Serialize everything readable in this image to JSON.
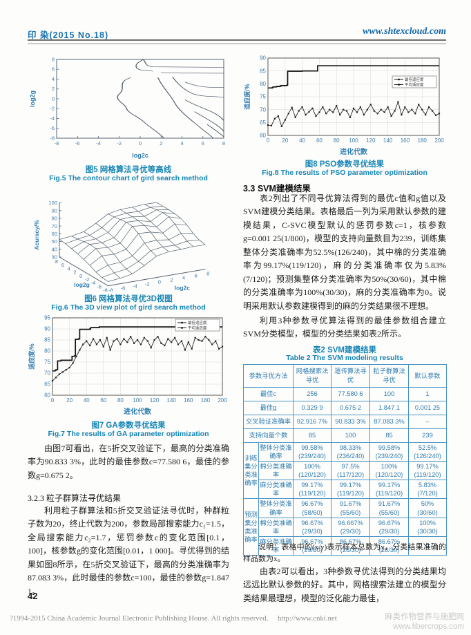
{
  "header": {
    "journal": "印 染(2015 No.18)",
    "site": "www.shtexcloud.com"
  },
  "figures": {
    "fig5": {
      "caption_cn": "图5 网格算法寻优等高线",
      "caption_en": "Fig.5 The contour chart of gird search method",
      "xlabel": "log2c",
      "ylabel": "log2g",
      "xlim": [
        -8,
        8
      ],
      "ylim": [
        -8,
        8
      ],
      "ticks": [
        -8,
        -6,
        -4,
        -2,
        0,
        2,
        4,
        6,
        8
      ],
      "chart_data": {
        "type": "contour",
        "contour_paths": [
          "M 0.3 8 C 0.6 7.2 0.4 6.8 1.2 6.5 L 8 6.4",
          "M 0.3 8 C -0.2 7.4 -0.6 6.9 -0.3 6.2 C 0 5.6 0.8 5.9 1.2 5.6",
          "M 2.0 5.35 C 3 5.15 5 5.25 8 5.2",
          "M -0.9 4.3 C -2.3 3.4 -1.3 2.2 -2 1 C -2.6 -0.2 -1.5 -0.8 -1.3 -2 C -1.1 -3 -0.2 -3.6 0.3 -4.6 C 0.8 -5.6 1.6 -6.6 2.3 -8",
          "M 1.7 4.3 C 2.1 2.4 2.9 0.8 3.3 -0.8 C 3.7 -2.4 4.7 -4 5.5 -5.4 C 6.1 -6.5 6.6 -7.2 7 -8",
          "M 3.1 4.4 C 3.7 2.8 4.3 1.6 5.2 0.9 C 6.3 0.3 7.1 0.6 8 0.3",
          "M 4.3 3.4 C 5.3 2.5 6.5 2.2 8 2.3",
          "M 4.3 -0.2 C 5.1 -1.2 6.1 -1.9 6.9 -2.7 C 7.5 -3.3 7.8 -3.9 8 -4.4",
          "M 5.2 -2.6 C 5.9 -3.5 6.7 -4.4 7.3 -5.3 C 7.7 -5.9 7.9 -6.3 8 -6.6",
          "M 6.4 -5.2 C 6.9 -5.9 7.5 -6.8 8 -7.7"
        ]
      }
    },
    "fig6": {
      "caption_cn": "图6 网格算法寻优3D视图",
      "caption_en": "Fig.6 The 3D view plot of gird search method",
      "zlabel": "Acuracy/%",
      "xlabel": "log2c",
      "ylabel": "log2g",
      "zticks": [
        30,
        40,
        50,
        60,
        70,
        80,
        90,
        100
      ],
      "gticks": [
        8,
        6,
        4,
        2,
        0,
        -2,
        -4,
        -6,
        -8
      ],
      "cticks": [
        -8,
        -6,
        -4,
        -2,
        0,
        2,
        4,
        6,
        8
      ],
      "chart_data": {
        "type": "surface"
      }
    },
    "fig7": {
      "caption_cn": "图7 GA参数寻优结果",
      "caption_en": "Fig.7 The results of GA parameter optimization",
      "xlabel": "进化代数",
      "ylabel": "适应度/%",
      "xlim": [
        0,
        200
      ],
      "ylim": [
        60,
        95
      ],
      "xticks": [
        0,
        20,
        40,
        60,
        80,
        100,
        120,
        140,
        160,
        180,
        200
      ],
      "yticks": [
        60,
        65,
        70,
        75,
        80,
        85,
        90,
        95
      ],
      "legend": [
        "最佳适应度",
        "平均适应度"
      ],
      "legend_dy": 2,
      "chart_data": {
        "type": "line",
        "series": [
          {
            "name": "最佳适应度",
            "style": "step",
            "points": [
              [
                0,
                71
              ],
              [
                3,
                71.2
              ],
              [
                4,
                71.5
              ],
              [
                6,
                75.5
              ],
              [
                10,
                75.8
              ],
              [
                22,
                75.8
              ],
              [
                23,
                77.6
              ],
              [
                26,
                77.8
              ],
              [
                27,
                85.3
              ],
              [
                31,
                85.5
              ],
              [
                32,
                89.8
              ],
              [
                44,
                90
              ],
              [
                45,
                90.6
              ],
              [
                54,
                90.6
              ],
              [
                55,
                90.9
              ],
              [
                200,
                90.9
              ]
            ]
          },
          {
            "name": "平均适应度",
            "style": "marker",
            "points": [
              [
                0,
                66.5
              ],
              [
                4,
                68
              ],
              [
                8,
                69.5
              ],
              [
                12,
                70.5
              ],
              [
                16,
                71.5
              ],
              [
                20,
                72.5
              ],
              [
                24,
                74.5
              ],
              [
                28,
                77.5
              ],
              [
                32,
                80.5
              ],
              [
                36,
                83
              ],
              [
                40,
                84.5
              ],
              [
                44,
                82.5
              ],
              [
                48,
                85.5
              ],
              [
                52,
                83
              ],
              [
                56,
                85
              ],
              [
                60,
                82
              ],
              [
                64,
                86
              ],
              [
                68,
                80.5
              ],
              [
                72,
                84.5
              ],
              [
                76,
                85.5
              ],
              [
                80,
                83
              ],
              [
                84,
                85.5
              ],
              [
                88,
                84
              ],
              [
                92,
                86.5
              ],
              [
                96,
                83.5
              ],
              [
                100,
                85
              ],
              [
                104,
                83
              ],
              [
                108,
                86
              ],
              [
                112,
                84.5
              ],
              [
                116,
                81.5
              ],
              [
                120,
                85
              ],
              [
                124,
                86.5
              ],
              [
                128,
                83.5
              ],
              [
                132,
                82.5
              ],
              [
                136,
                85.5
              ],
              [
                140,
                84
              ],
              [
                144,
                86
              ],
              [
                148,
                83
              ],
              [
                152,
                84.5
              ],
              [
                156,
                80.5
              ],
              [
                160,
                84
              ],
              [
                164,
                81
              ],
              [
                168,
                86
              ],
              [
                172,
                85
              ],
              [
                176,
                84.5
              ],
              [
                180,
                86.5
              ],
              [
                184,
                85
              ],
              [
                188,
                83
              ],
              [
                192,
                84.5
              ],
              [
                196,
                81
              ],
              [
                200,
                82
              ]
            ]
          }
        ]
      }
    },
    "fig8": {
      "caption_cn": "图8 PSO参数寻优结果",
      "caption_en": "Fig.8 The results of PSO parameter optimization",
      "xlabel": "进化代数",
      "ylabel": "适应度/%",
      "xlim": [
        0,
        200
      ],
      "ylim": [
        60,
        90
      ],
      "xticks": [
        0,
        20,
        40,
        60,
        80,
        100,
        120,
        140,
        160,
        180,
        200
      ],
      "yticks": [
        60,
        65,
        70,
        75,
        80,
        85,
        90
      ],
      "legend": [
        "最佳适应度",
        "平均适应度"
      ],
      "legend_dy": 26,
      "chart_data": {
        "type": "line",
        "series": [
          {
            "name": "最佳适应度",
            "style": "step",
            "points": [
              [
                0,
                78.4
              ],
              [
                5,
                78.6
              ],
              [
                6,
                78.8
              ],
              [
                10,
                79
              ],
              [
                14,
                79.1
              ],
              [
                15,
                79.3
              ],
              [
                22,
                79.5
              ],
              [
                23,
                84.9
              ],
              [
                40,
                85
              ],
              [
                57,
                85
              ],
              [
                58,
                87
              ],
              [
                200,
                87
              ]
            ]
          },
          {
            "name": "平均适应度",
            "style": "marker",
            "points": [
              [
                0,
                64
              ],
              [
                4,
                63.8
              ],
              [
                8,
                66.5
              ],
              [
                12,
                67.5
              ],
              [
                16,
                63.5
              ],
              [
                20,
                66
              ],
              [
                24,
                68.5
              ],
              [
                28,
                70.8
              ],
              [
                32,
                67
              ],
              [
                36,
                69.5
              ],
              [
                40,
                71
              ],
              [
                44,
                68
              ],
              [
                48,
                69.2
              ],
              [
                52,
                70.5
              ],
              [
                56,
                67.5
              ],
              [
                60,
                69
              ],
              [
                64,
                71
              ],
              [
                68,
                68.5
              ],
              [
                72,
                70
              ],
              [
                76,
                69
              ],
              [
                80,
                71.5
              ],
              [
                84,
                68
              ],
              [
                88,
                70
              ],
              [
                92,
                69.5
              ],
              [
                96,
                67
              ],
              [
                100,
                70.5
              ],
              [
                104,
                69
              ],
              [
                108,
                71
              ],
              [
                112,
                68
              ],
              [
                116,
                70
              ],
              [
                120,
                72
              ],
              [
                124,
                69.5
              ],
              [
                128,
                68.5
              ],
              [
                132,
                70
              ],
              [
                136,
                69
              ],
              [
                140,
                71
              ],
              [
                144,
                67.5
              ],
              [
                148,
                69.5
              ],
              [
                152,
                73
              ],
              [
                156,
                68
              ],
              [
                160,
                71
              ],
              [
                164,
                69
              ],
              [
                168,
                70
              ],
              [
                172,
                68.5
              ],
              [
                176,
                72
              ],
              [
                180,
                70
              ],
              [
                184,
                68
              ],
              [
                188,
                71
              ],
              [
                192,
                69.5
              ],
              [
                196,
                67.8
              ],
              [
                200,
                68.5
              ]
            ]
          }
        ]
      }
    }
  },
  "left_column": {
    "p1": "由图7可看出，在5折交叉验证下，最高的分类准确率为90.833 3%，此时的最佳参数c=77.580 6，最佳的参数g=0.675 2。",
    "h323": "3.2.3 粒子群算法寻优结果",
    "p2": "利用粒子群算法和5折交叉验证法寻优时，种群粒子数为20，终止代数为200，参数局部搜索能力c₁=1.5，全局搜索能力c₂=1.7，惩罚参数c的变化范围[0.1，100]，核参数g的变化范围[0.01，1 000]。寻优得到的结果如图8所示，在5折交叉验证下，最高的分类准确率为87.083 3%，此时最佳的参数c=100，最佳的参数g=1.847 1。",
    "page_number": "42"
  },
  "right_column": {
    "h33": "3.3 SVM建模结果",
    "p1": "表2列出了不同寻优算法得到的最优c值和g值以及SVM建模分类结果。表格最后一列为采用默认参数的建模结果，C-SVC模型默认的惩罚参数c=1，核参数g=0.001 25(1/800)，模型的支持向量数目为239，训练集整体分类准确率为52.5%(126/240)，其中棉的分类准确率为99.17%(119/120)，麻的分类准确率仅为5.83%(7/120)；预测集整体分类准确率为50%(30/60)，其中棉的分类准确率为100%(30/30)，麻的分类准确率为0。说明采用默认参数建模得到的麻的分类结果很不理想。",
    "p2": "利用3种参数寻优算法得到的最佳参数组合建立SVM分类模型，模型的分类结果如表2所示。",
    "p3": "由表2可以看出，3种参数寻优法得到的分类结果均远远比默认参数的好。其中，网格搜索法建立的模型分类结果最理想，模型的泛化能力最佳，"
  },
  "table2": {
    "title_cn": "表2 SVM建模结果",
    "title_en": "Table 2 The SVM modeling results",
    "col_headers": [
      "参数寻优方法",
      "网格搜索法寻优",
      "遗传算法寻优",
      "粒子群算法寻优",
      "默认参数"
    ],
    "simple_rows": [
      {
        "label": "最佳c",
        "values": [
          "256",
          "77.580 6",
          "100",
          "1"
        ]
      },
      {
        "label": "最佳g",
        "values": [
          "0.329 9",
          "0.675 2",
          "1.847 1",
          "0.001 25"
        ]
      },
      {
        "label": "交叉验证准确率",
        "values": [
          "92.916 7%",
          "90.833 3%",
          "87.083 3%",
          "–"
        ]
      },
      {
        "label": "支持向量个数",
        "values": [
          "85",
          "100",
          "85",
          "239"
        ]
      }
    ],
    "group_rows": [
      {
        "group": "训练集分类准确率",
        "rows": [
          {
            "label": "整体分类准确率",
            "values": [
              [
                "99.58%",
                "(239/240)"
              ],
              [
                "98.33%",
                "(236/240)"
              ],
              [
                "99.58%",
                "(239/240)"
              ],
              [
                "52.5%",
                "(126/240)"
              ]
            ]
          },
          {
            "label": "棉分类准确率",
            "values": [
              [
                "100%",
                "(120/120)"
              ],
              [
                "97.5%",
                "(117/120)"
              ],
              [
                "100%",
                "(120/120)"
              ],
              [
                "99.17%",
                "(119/120)"
              ]
            ]
          },
          {
            "label": "麻分类准确率",
            "values": [
              [
                "99.17%",
                "(119/120)"
              ],
              [
                "99.17%",
                "(119/120)"
              ],
              [
                "99.17%",
                "(119/120)"
              ],
              [
                "5.83%",
                "(7/120)"
              ]
            ]
          }
        ]
      },
      {
        "group": "预测集分类准确率",
        "rows": [
          {
            "label": "整体分类准确率",
            "values": [
              [
                "96.67%",
                "(58/60)"
              ],
              [
                "91.67%",
                "(55/60)"
              ],
              [
                "91.67%",
                "(55/60)"
              ],
              [
                "50%",
                "(30/60)"
              ]
            ]
          },
          {
            "label": "棉分类准确率",
            "values": [
              [
                "96.67%",
                "(29/30)"
              ],
              [
                "96.667%",
                "(29/30)"
              ],
              [
                "96.67%",
                "(29/30)"
              ],
              [
                "100%",
                "(30/30)"
              ]
            ]
          },
          {
            "label": "麻分类准确率",
            "values": [
              [
                "96.67%",
                "(29/30)"
              ],
              [
                "86.67%",
                "(26/30)"
              ],
              [
                "86.67%",
                "(26/30)"
              ],
              [
                "0",
                ""
              ]
            ]
          }
        ]
      }
    ],
    "note": "说明：表格中的(x/y)表示样本总数为y，分类结果准确的样品数为x。"
  },
  "footer": {
    "copyright": "?1994-2015 China Academic Journal Electronic Publishing House. All rights reserved.",
    "url": "http://www.cnki.net",
    "watermark_line1": "麻类作物营养与施肥网",
    "watermark_line2": "www.fibercrops.com"
  },
  "colors": {
    "header_blue": "#1a74b0",
    "caption_blue": "#1585b5",
    "table_blue": "#2e7cb0",
    "table_border": "#4a94c5",
    "chart_tick_blue": "#3f7ca8",
    "line_dark": "#1a1a1a"
  }
}
